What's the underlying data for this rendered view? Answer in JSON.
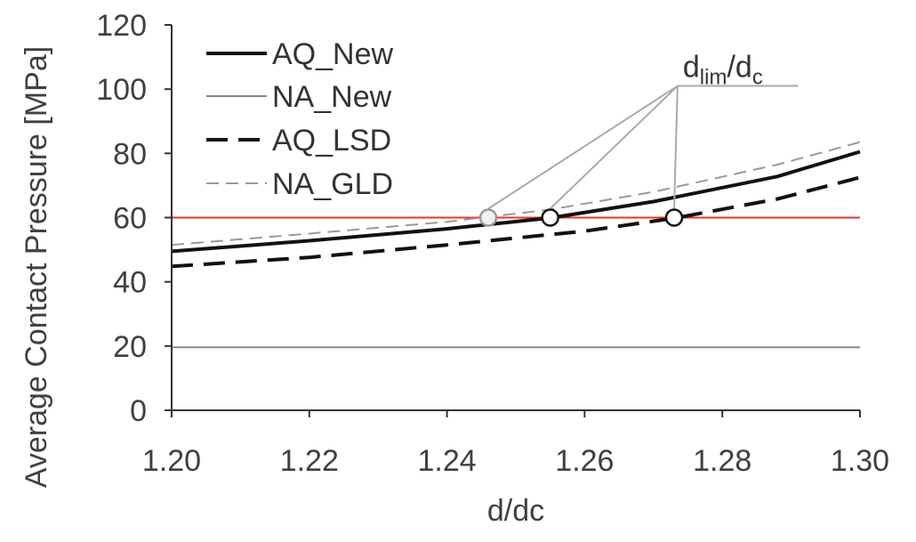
{
  "chart_data": {
    "type": "line",
    "title": "",
    "xlabel": "d/dc",
    "ylabel": "Average Contact Pressure [MPa]",
    "xlim": [
      1.2,
      1.3
    ],
    "ylim": [
      0,
      120
    ],
    "x_ticks": [
      "1.20",
      "1.22",
      "1.24",
      "1.26",
      "1.28",
      "1.30"
    ],
    "y_ticks": [
      "0",
      "20",
      "40",
      "60",
      "80",
      "100",
      "120"
    ],
    "grid": false,
    "legend_position": "top-left",
    "series": [
      {
        "name": "AQ_New",
        "style": "solid-thick",
        "color": "#111111",
        "x": [
          1.2,
          1.22,
          1.24,
          1.255,
          1.27,
          1.288,
          1.3
        ],
        "y": [
          49.5,
          52.8,
          56.5,
          59.9,
          65.0,
          72.8,
          80.5
        ]
      },
      {
        "name": "NA_New",
        "style": "solid-thin",
        "color": "#888888",
        "x": [
          1.2,
          1.3
        ],
        "y": [
          19.6,
          19.6
        ]
      },
      {
        "name": "AQ_LSD",
        "style": "dashed-thick",
        "color": "#111111",
        "x": [
          1.2,
          1.22,
          1.24,
          1.26,
          1.273,
          1.288,
          1.3
        ],
        "y": [
          44.8,
          47.6,
          51.5,
          55.8,
          59.8,
          65.8,
          72.5
        ]
      },
      {
        "name": "NA_GLD",
        "style": "dashed-thin",
        "color": "#999999",
        "x": [
          1.2,
          1.22,
          1.24,
          1.255,
          1.27,
          1.288,
          1.3
        ],
        "y": [
          51.5,
          55.0,
          58.7,
          62.5,
          68.0,
          76.5,
          83.5
        ]
      }
    ],
    "reference_line": {
      "y": 60,
      "color": "#e8332a",
      "label": ""
    },
    "limit_markers": [
      {
        "x": 1.246,
        "y": 60,
        "fill": "#f0f0f0",
        "stroke": "#999999"
      },
      {
        "x": 1.255,
        "y": 60,
        "fill": "#ffffff",
        "stroke": "#111111"
      },
      {
        "x": 1.273,
        "y": 60,
        "fill": "#ffffff",
        "stroke": "#111111"
      }
    ],
    "annotation": {
      "main": "d",
      "sub1": "lim",
      "mid": "/d",
      "sub2": "c",
      "anchor": {
        "x": 1.2735,
        "y": 101
      },
      "shelf_end_x": 1.291
    }
  }
}
